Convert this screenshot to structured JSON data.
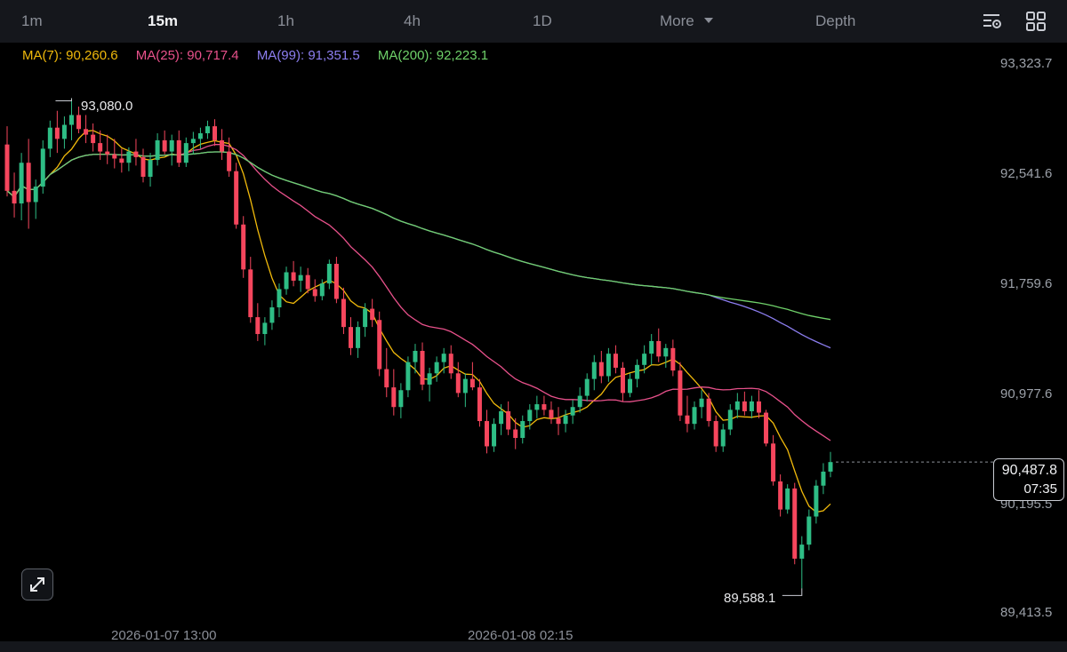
{
  "toolbar": {
    "intervals": [
      {
        "label": "1m"
      },
      {
        "label": "15m"
      },
      {
        "label": "1h"
      },
      {
        "label": "4h"
      },
      {
        "label": "1D"
      }
    ],
    "more_label": "More",
    "depth_label": "Depth",
    "active_interval": "15m",
    "indicator_settings_icon": "indicator-settings-icon",
    "layout_icon": "grid-layout-icon"
  },
  "moving_averages": [
    {
      "label": "MA(7): 90,260.6",
      "color": "#f0b90b"
    },
    {
      "label": "MA(25): 90,717.4",
      "color": "#e8518b"
    },
    {
      "label": "MA(99): 91,351.5",
      "color": "#8c7ef0"
    },
    {
      "label": "MA(200): 92,223.1",
      "color": "#6fd16a"
    }
  ],
  "price_axis": [
    "93,323.7",
    "92,541.6",
    "91,759.6",
    "90,977.6",
    "90,195.5",
    "89,413.5"
  ],
  "time_axis": [
    "2026-01-07 13:00",
    "2026-01-08 02:15"
  ],
  "high_marker": "93,080.0",
  "low_marker": "89,588.1",
  "current_price": {
    "price": "90,487.8",
    "countdown": "07:35"
  },
  "colors": {
    "up": "#2ebd85",
    "down": "#f6465d",
    "background": "#000000"
  },
  "chart_data": {
    "type": "candlestick",
    "interval": "15m",
    "ylim": [
      89413.5,
      93323.7
    ],
    "candles": [
      [
        92750,
        92880,
        92380,
        92420
      ],
      [
        92420,
        92550,
        92230,
        92330
      ],
      [
        92330,
        92690,
        92210,
        92620
      ],
      [
        92620,
        92790,
        92150,
        92340
      ],
      [
        92340,
        92500,
        92220,
        92450
      ],
      [
        92450,
        92780,
        92400,
        92720
      ],
      [
        92720,
        92920,
        92660,
        92870
      ],
      [
        92870,
        92990,
        92690,
        92790
      ],
      [
        92790,
        92950,
        92720,
        92890
      ],
      [
        92890,
        93080,
        92780,
        92960
      ],
      [
        92960,
        93020,
        92830,
        92860
      ],
      [
        92860,
        92960,
        92760,
        92820
      ],
      [
        92820,
        92900,
        92700,
        92760
      ],
      [
        92760,
        92850,
        92640,
        92700
      ],
      [
        92700,
        92820,
        92610,
        92680
      ],
      [
        92680,
        92790,
        92580,
        92650
      ],
      [
        92650,
        92720,
        92550,
        92620
      ],
      [
        92620,
        92730,
        92560,
        92700
      ],
      [
        92700,
        92790,
        92600,
        92660
      ],
      [
        92660,
        92720,
        92480,
        92520
      ],
      [
        92520,
        92690,
        92450,
        92640
      ],
      [
        92640,
        92830,
        92600,
        92780
      ],
      [
        92780,
        92850,
        92680,
        92700
      ],
      [
        92700,
        92820,
        92600,
        92780
      ],
      [
        92780,
        92850,
        92590,
        92620
      ],
      [
        92620,
        92800,
        92590,
        92760
      ],
      [
        92760,
        92840,
        92680,
        92790
      ],
      [
        92790,
        92870,
        92720,
        92830
      ],
      [
        92830,
        92920,
        92790,
        92880
      ],
      [
        92880,
        92930,
        92740,
        92780
      ],
      [
        92780,
        92860,
        92640,
        92700
      ],
      [
        92700,
        92800,
        92520,
        92560
      ],
      [
        92560,
        92620,
        92150,
        92180
      ],
      [
        92180,
        92240,
        91800,
        91860
      ],
      [
        91860,
        91950,
        91480,
        91520
      ],
      [
        91520,
        91620,
        91350,
        91400
      ],
      [
        91400,
        91520,
        91320,
        91480
      ],
      [
        91480,
        91640,
        91430,
        91590
      ],
      [
        91590,
        91760,
        91520,
        91720
      ],
      [
        91720,
        91880,
        91680,
        91840
      ],
      [
        91840,
        91920,
        91740,
        91780
      ],
      [
        91780,
        91880,
        91700,
        91820
      ],
      [
        91820,
        91870,
        91690,
        91720
      ],
      [
        91720,
        91790,
        91630,
        91670
      ],
      [
        91670,
        91790,
        91640,
        91760
      ],
      [
        91760,
        91930,
        91720,
        91900
      ],
      [
        91900,
        91950,
        91620,
        91650
      ],
      [
        91650,
        91730,
        91400,
        91450
      ],
      [
        91450,
        91520,
        91250,
        91300
      ],
      [
        91300,
        91490,
        91230,
        91450
      ],
      [
        91450,
        91620,
        91380,
        91580
      ],
      [
        91580,
        91650,
        91450,
        91500
      ],
      [
        91500,
        91560,
        91100,
        91150
      ],
      [
        91150,
        91300,
        90950,
        91020
      ],
      [
        91020,
        91150,
        90820,
        90880
      ],
      [
        90880,
        91050,
        90800,
        91000
      ],
      [
        91000,
        91240,
        90950,
        91200
      ],
      [
        91200,
        91330,
        91120,
        91280
      ],
      [
        91280,
        91340,
        91000,
        91040
      ],
      [
        91040,
        91160,
        90920,
        91120
      ],
      [
        91120,
        91240,
        91060,
        91200
      ],
      [
        91200,
        91300,
        91120,
        91260
      ],
      [
        91260,
        91320,
        91080,
        91120
      ],
      [
        91120,
        91200,
        90950,
        90980
      ],
      [
        90980,
        91120,
        90880,
        91080
      ],
      [
        91080,
        91200,
        91000,
        91020
      ],
      [
        91020,
        91080,
        90740,
        90780
      ],
      [
        90780,
        90860,
        90550,
        90600
      ],
      [
        90600,
        90800,
        90560,
        90760
      ],
      [
        90760,
        90900,
        90680,
        90850
      ],
      [
        90850,
        90920,
        90680,
        90720
      ],
      [
        90720,
        90800,
        90580,
        90660
      ],
      [
        90660,
        90820,
        90620,
        90780
      ],
      [
        90780,
        90900,
        90720,
        90860
      ],
      [
        90860,
        90960,
        90800,
        90900
      ],
      [
        90900,
        90960,
        90820,
        90860
      ],
      [
        90860,
        90920,
        90760,
        90800
      ],
      [
        90800,
        90880,
        90680,
        90760
      ],
      [
        90760,
        90860,
        90700,
        90820
      ],
      [
        90820,
        90930,
        90760,
        90880
      ],
      [
        90880,
        91020,
        90840,
        90960
      ],
      [
        90960,
        91120,
        90920,
        91080
      ],
      [
        91080,
        91250,
        91000,
        91200
      ],
      [
        91200,
        91280,
        91050,
        91100
      ],
      [
        91100,
        91300,
        91060,
        91260
      ],
      [
        91260,
        91320,
        91120,
        91160
      ],
      [
        91160,
        91200,
        90920,
        90980
      ],
      [
        90980,
        91120,
        90950,
        91080
      ],
      [
        91080,
        91220,
        91020,
        91180
      ],
      [
        91180,
        91320,
        91120,
        91260
      ],
      [
        91260,
        91400,
        91180,
        91350
      ],
      [
        91350,
        91440,
        91200,
        91240
      ],
      [
        91240,
        91330,
        91160,
        91300
      ],
      [
        91300,
        91360,
        91100,
        91140
      ],
      [
        91140,
        91200,
        90780,
        90820
      ],
      [
        90820,
        90960,
        90700,
        90760
      ],
      [
        90760,
        90920,
        90720,
        90880
      ],
      [
        90880,
        91000,
        90800,
        90940
      ],
      [
        90940,
        90980,
        90740,
        90780
      ],
      [
        90780,
        90820,
        90560,
        90600
      ],
      [
        90600,
        90760,
        90560,
        90720
      ],
      [
        90720,
        90900,
        90680,
        90860
      ],
      [
        90860,
        90980,
        90800,
        90920
      ],
      [
        90920,
        90990,
        90820,
        90850
      ],
      [
        90850,
        90960,
        90800,
        90920
      ],
      [
        90920,
        91000,
        90800,
        90840
      ],
      [
        90840,
        90860,
        90600,
        90620
      ],
      [
        90620,
        90680,
        90320,
        90350
      ],
      [
        90350,
        90400,
        90100,
        90150
      ],
      [
        90150,
        90330,
        90120,
        90300
      ],
      [
        90300,
        90340,
        89760,
        89800
      ],
      [
        89800,
        89960,
        89588,
        89900
      ],
      [
        89900,
        90150,
        89860,
        90100
      ],
      [
        90100,
        90360,
        90050,
        90320
      ],
      [
        90320,
        90480,
        90260,
        90420
      ],
      [
        90420,
        90560,
        90380,
        90488
      ]
    ]
  }
}
